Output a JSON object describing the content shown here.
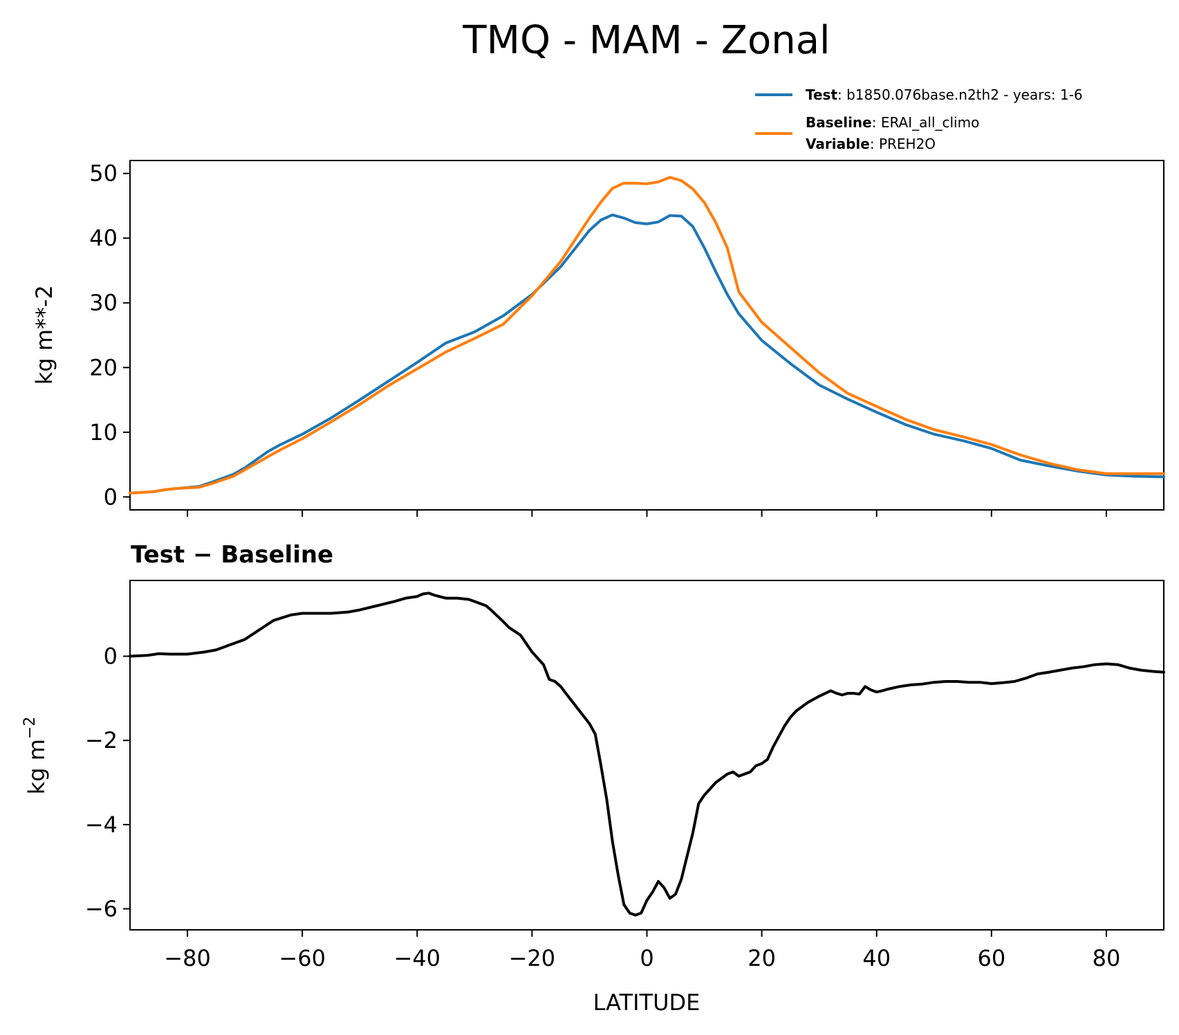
{
  "chart_data": [
    {
      "type": "line",
      "title": "TMQ - MAM - Zonal",
      "ylabel": "kg m**-2",
      "xlim": [
        -90,
        90
      ],
      "ylim": [
        -2,
        52
      ],
      "xticks": [
        -80,
        -60,
        -40,
        -20,
        0,
        20,
        40,
        60,
        80
      ],
      "yticks": [
        0,
        10,
        20,
        30,
        40,
        50
      ],
      "ytick_labels": [
        "0",
        "10",
        "20",
        "30",
        "40",
        "50"
      ],
      "grid": false,
      "legend_placement": "above the plot, right",
      "legend": {
        "test_key": "Test",
        "test_value": ": b1850.076base.n2th2 - years: 1-6",
        "baseline_key": "Baseline",
        "baseline_value": ": ERAI_all_climo",
        "variable_key": "Variable",
        "variable_value": ": PREH2O"
      },
      "series": [
        {
          "name": "Test",
          "color": "#1f77b4",
          "x": [
            -90,
            -86,
            -84,
            -82,
            -78,
            -76,
            -72,
            -70,
            -66,
            -64,
            -60,
            -55,
            -50,
            -45,
            -40,
            -35,
            -30,
            -25,
            -20,
            -15,
            -10,
            -8,
            -6,
            -4,
            -2,
            0,
            2,
            4,
            6,
            8,
            10,
            12,
            14,
            16,
            20,
            25,
            30,
            35,
            40,
            45,
            50,
            55,
            60,
            65,
            70,
            75,
            80,
            85,
            90
          ],
          "y": [
            0.6,
            0.8,
            1.1,
            1.3,
            1.6,
            2.2,
            3.5,
            4.5,
            7.0,
            8.0,
            9.7,
            12.2,
            15.0,
            17.9,
            20.8,
            23.8,
            25.5,
            28.0,
            31.3,
            35.6,
            41.2,
            42.8,
            43.6,
            43.1,
            42.4,
            42.2,
            42.5,
            43.5,
            43.4,
            41.8,
            38.5,
            34.8,
            31.3,
            28.3,
            24.2,
            20.6,
            17.3,
            15.1,
            13.1,
            11.2,
            9.7,
            8.7,
            7.5,
            5.7,
            4.8,
            4.0,
            3.4,
            3.2,
            3.1
          ]
        },
        {
          "name": "Baseline",
          "color": "#ff7f0e",
          "x": [
            -90,
            -86,
            -84,
            -82,
            -78,
            -76,
            -72,
            -70,
            -66,
            -64,
            -60,
            -55,
            -50,
            -45,
            -40,
            -35,
            -30,
            -25,
            -20,
            -15,
            -10,
            -8,
            -6,
            -4,
            -2,
            0,
            2,
            4,
            6,
            8,
            10,
            12,
            14,
            16,
            20,
            25,
            30,
            35,
            40,
            45,
            50,
            55,
            60,
            65,
            70,
            75,
            80,
            85,
            90
          ],
          "y": [
            0.6,
            0.8,
            1.1,
            1.3,
            1.5,
            2.0,
            3.2,
            4.2,
            6.2,
            7.2,
            9.0,
            11.6,
            14.3,
            17.2,
            19.8,
            22.4,
            24.5,
            26.7,
            31.1,
            36.4,
            43.1,
            45.6,
            47.7,
            48.5,
            48.5,
            48.4,
            48.7,
            49.4,
            48.9,
            47.6,
            45.5,
            42.4,
            38.5,
            31.7,
            27.0,
            23.1,
            19.2,
            16.0,
            14.0,
            12.0,
            10.4,
            9.3,
            8.1,
            6.5,
            5.2,
            4.2,
            3.6,
            3.6,
            3.6
          ]
        }
      ]
    },
    {
      "type": "line",
      "title": "Test − Baseline",
      "xlabel": "LATITUDE",
      "ylabel_main": "kg m",
      "ylabel_sup": "−2",
      "xlim": [
        -90,
        90
      ],
      "ylim": [
        -6.5,
        1.8
      ],
      "xticks": [
        -80,
        -60,
        -40,
        -20,
        0,
        20,
        40,
        60,
        80
      ],
      "xtick_labels": [
        "−80",
        "−60",
        "−40",
        "−20",
        "0",
        "20",
        "40",
        "60",
        "80"
      ],
      "yticks": [
        0,
        -2,
        -4,
        -6
      ],
      "ytick_labels": [
        "0",
        "−2",
        "−4",
        "−6"
      ],
      "grid": false,
      "series": [
        {
          "color": "#000000",
          "x": [
            -90,
            -87,
            -85,
            -83,
            -80,
            -77,
            -75,
            -72,
            -70,
            -68,
            -65,
            -62,
            -60,
            -58,
            -55,
            -52,
            -50,
            -47,
            -44,
            -42,
            -40,
            -39,
            -38,
            -37,
            -35,
            -33,
            -31,
            -30,
            -28,
            -27,
            -25,
            -24,
            -22,
            -20,
            -18,
            -17,
            -16,
            -15,
            -14,
            -12,
            -10,
            -9,
            -8,
            -7,
            -6,
            -5,
            -4,
            -3,
            -2,
            -1,
            0,
            1,
            2,
            3,
            4,
            5,
            6,
            7,
            8,
            9,
            10,
            12,
            14,
            15,
            16,
            18,
            19,
            20,
            21,
            22,
            23,
            24,
            25,
            26,
            28,
            30,
            32,
            33,
            34,
            35,
            36,
            37,
            38,
            39,
            40,
            41,
            42,
            44,
            46,
            48,
            50,
            52,
            54,
            56,
            58,
            60,
            62,
            64,
            66,
            68,
            70,
            72,
            74,
            76,
            78,
            80,
            82,
            84,
            86,
            88,
            90
          ],
          "y": [
            0.0,
            0.02,
            0.06,
            0.05,
            0.05,
            0.1,
            0.15,
            0.3,
            0.4,
            0.58,
            0.85,
            0.98,
            1.02,
            1.02,
            1.02,
            1.05,
            1.1,
            1.2,
            1.3,
            1.38,
            1.42,
            1.48,
            1.5,
            1.45,
            1.38,
            1.38,
            1.35,
            1.3,
            1.2,
            1.08,
            0.82,
            0.68,
            0.5,
            0.1,
            -0.2,
            -0.55,
            -0.6,
            -0.72,
            -0.9,
            -1.25,
            -1.6,
            -1.85,
            -2.6,
            -3.4,
            -4.4,
            -5.2,
            -5.9,
            -6.1,
            -6.15,
            -6.1,
            -5.8,
            -5.6,
            -5.35,
            -5.5,
            -5.75,
            -5.65,
            -5.3,
            -4.75,
            -4.2,
            -3.5,
            -3.3,
            -3.0,
            -2.8,
            -2.75,
            -2.85,
            -2.75,
            -2.6,
            -2.55,
            -2.45,
            -2.15,
            -1.9,
            -1.65,
            -1.45,
            -1.3,
            -1.1,
            -0.95,
            -0.82,
            -0.88,
            -0.92,
            -0.88,
            -0.88,
            -0.9,
            -0.72,
            -0.8,
            -0.85,
            -0.82,
            -0.78,
            -0.72,
            -0.68,
            -0.66,
            -0.62,
            -0.6,
            -0.6,
            -0.62,
            -0.62,
            -0.65,
            -0.63,
            -0.6,
            -0.52,
            -0.42,
            -0.38,
            -0.33,
            -0.28,
            -0.25,
            -0.2,
            -0.18,
            -0.2,
            -0.28,
            -0.33,
            -0.36,
            -0.38
          ]
        }
      ]
    }
  ]
}
